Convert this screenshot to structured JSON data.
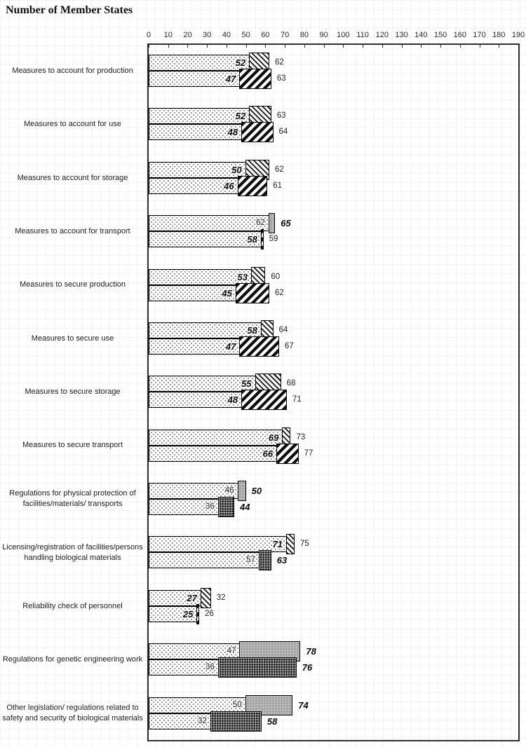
{
  "chart_data": {
    "type": "bar",
    "orientation": "horizontal",
    "title": "Number of Member States",
    "x_axis": {
      "min": 0,
      "max": 190,
      "step": 10,
      "tick_labels": [
        "0",
        "10",
        "20",
        "30",
        "40",
        "50",
        "60",
        "70",
        "80",
        "90",
        "100",
        "110",
        "120",
        "130",
        "140",
        "150",
        "160",
        "170",
        "180",
        "190"
      ]
    },
    "grid": "faint page grid",
    "legend": "none visible",
    "pattern_colors": {
      "base_dotted": "#fefefe with dark stipple",
      "hatch_light": "thin black \\ diagonal on white",
      "hatch_dark": "thick black / diagonal on white",
      "gray": "#a3a3a3",
      "checker": "black with fine gray grid"
    },
    "rows": [
      {
        "category": "Measures to account for production",
        "bars": [
          {
            "base_value": 52,
            "end_value": 62,
            "bold_label": "inside",
            "extension_pattern": "hatch-light"
          },
          {
            "base_value": 47,
            "end_value": 63,
            "bold_label": "inside",
            "extension_pattern": "hatch-dark"
          }
        ]
      },
      {
        "category": "Measures to account for use",
        "bars": [
          {
            "base_value": 52,
            "end_value": 63,
            "bold_label": "inside",
            "extension_pattern": "hatch-light"
          },
          {
            "base_value": 48,
            "end_value": 64,
            "bold_label": "inside",
            "extension_pattern": "hatch-dark"
          }
        ]
      },
      {
        "category": "Measures to account for storage",
        "bars": [
          {
            "base_value": 50,
            "end_value": 62,
            "bold_label": "inside",
            "extension_pattern": "hatch-light"
          },
          {
            "base_value": 46,
            "end_value": 61,
            "bold_label": "inside",
            "extension_pattern": "hatch-dark"
          }
        ]
      },
      {
        "category": "Measures to account for transport",
        "bars": [
          {
            "base_value": 62,
            "end_value": 65,
            "bold_label": "outside",
            "extension_pattern": "gray"
          },
          {
            "base_value": 58,
            "end_value": 59,
            "bold_label": "inside",
            "extension_pattern": "hatch-dark"
          }
        ]
      },
      {
        "category": "Measures to secure production",
        "bars": [
          {
            "base_value": 53,
            "end_value": 60,
            "bold_label": "inside",
            "extension_pattern": "hatch-light"
          },
          {
            "base_value": 45,
            "end_value": 62,
            "bold_label": "inside",
            "extension_pattern": "hatch-dark"
          }
        ]
      },
      {
        "category": "Measures to secure use",
        "bars": [
          {
            "base_value": 58,
            "end_value": 64,
            "bold_label": "inside",
            "extension_pattern": "hatch-light"
          },
          {
            "base_value": 47,
            "end_value": 67,
            "bold_label": "inside",
            "extension_pattern": "hatch-dark"
          }
        ]
      },
      {
        "category": "Measures to secure storage",
        "bars": [
          {
            "base_value": 55,
            "end_value": 68,
            "bold_label": "inside",
            "extension_pattern": "hatch-light"
          },
          {
            "base_value": 48,
            "end_value": 71,
            "bold_label": "inside",
            "extension_pattern": "hatch-dark"
          }
        ]
      },
      {
        "category": "Measures to secure transport",
        "bars": [
          {
            "base_value": 69,
            "end_value": 73,
            "bold_label": "inside",
            "extension_pattern": "hatch-light"
          },
          {
            "base_value": 66,
            "end_value": 77,
            "bold_label": "inside",
            "extension_pattern": "hatch-dark"
          }
        ]
      },
      {
        "category": "Regulations for physical protection of facilities/materials/ transports",
        "bars": [
          {
            "base_value": 46,
            "end_value": 50,
            "bold_label": "outside",
            "extension_pattern": "gray"
          },
          {
            "base_value": 36,
            "end_value": 44,
            "bold_label": "outside",
            "extension_pattern": "checker"
          }
        ]
      },
      {
        "category": "Licensing/registration of facilities/persons handling biological materials",
        "bars": [
          {
            "base_value": 71,
            "end_value": 75,
            "bold_label": "inside",
            "extension_pattern": "hatch-light"
          },
          {
            "base_value": 57,
            "end_value": 63,
            "bold_label": "outside",
            "extension_pattern": "checker"
          }
        ]
      },
      {
        "category": "Reliability check of personnel",
        "bars": [
          {
            "base_value": 27,
            "end_value": 32,
            "bold_label": "inside",
            "extension_pattern": "hatch-light"
          },
          {
            "base_value": 25,
            "end_value": 26,
            "bold_label": "inside",
            "extension_pattern": "hatch-dark"
          }
        ]
      },
      {
        "category": "Regulations for genetic engineering work",
        "bars": [
          {
            "base_value": 47,
            "end_value": 78,
            "bold_label": "outside",
            "extension_pattern": "gray"
          },
          {
            "base_value": 36,
            "end_value": 76,
            "bold_label": "outside",
            "extension_pattern": "checker"
          }
        ]
      },
      {
        "category": "Other legislation/ regulations related to safety and security of biological materials",
        "bars": [
          {
            "base_value": 50,
            "end_value": 74,
            "bold_label": "outside",
            "extension_pattern": "gray"
          },
          {
            "base_value": 32,
            "end_value": 58,
            "bold_label": "outside",
            "extension_pattern": "checker"
          }
        ]
      }
    ]
  }
}
